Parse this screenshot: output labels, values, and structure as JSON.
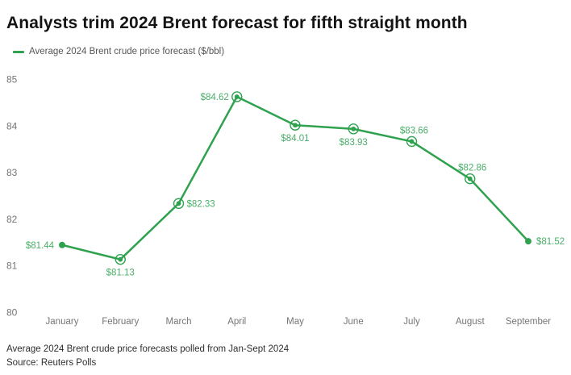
{
  "header": {
    "title": "Analysts trim 2024 Brent forecast for fifth straight month"
  },
  "legend": {
    "label": "Average 2024 Brent crude price forecast ($/bbl)"
  },
  "footer": {
    "note": "Average 2024 Brent crude price forecasts polled from Jan-Sept 2024",
    "source": "Source: Reuters Polls"
  },
  "colors": {
    "line": "#2ea24e",
    "marker": "#2ea24e",
    "value_label": "#4aae68",
    "axis_text": "#757575",
    "title_text": "#141414",
    "footer_text": "#2e2e2e",
    "background": "#ffffff"
  },
  "chart_data": {
    "type": "line",
    "title": "Analysts trim 2024 Brent forecast for fifth straight month",
    "series_name": "Average 2024 Brent crude price forecast ($/bbl)",
    "categories": [
      "January",
      "February",
      "March",
      "April",
      "May",
      "June",
      "July",
      "August",
      "September"
    ],
    "values": [
      81.44,
      81.13,
      82.33,
      84.62,
      84.01,
      83.93,
      83.66,
      82.86,
      81.52
    ],
    "value_labels": [
      "$81.44",
      "$81.13",
      "$82.33",
      "$84.62",
      "$84.01",
      "$83.93",
      "$83.66",
      "$82.86",
      "$81.52"
    ],
    "label_positions": [
      "left",
      "below",
      "right",
      "left",
      "below",
      "below",
      "above",
      "above",
      "right"
    ],
    "marker_styles": [
      "dot",
      "ring",
      "ring",
      "ring",
      "ring",
      "ring",
      "ring",
      "ring",
      "dot"
    ],
    "xlabel": "",
    "ylabel": "",
    "ylim": [
      80,
      85
    ],
    "yticks": [
      85,
      84,
      83,
      82,
      81,
      80
    ],
    "grid": false,
    "legend_position": "top-left"
  }
}
